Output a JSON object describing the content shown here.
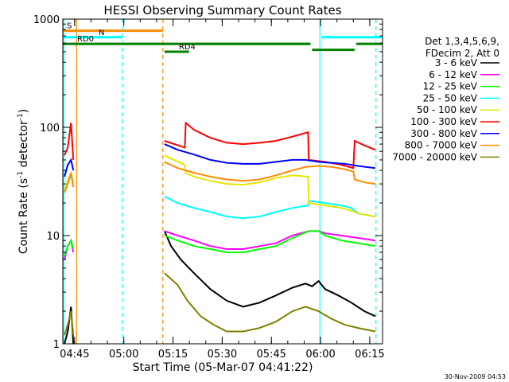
{
  "chart_data": {
    "type": "line",
    "title": "HESSI Observing Summary Count Rates",
    "xlabel": "Start Time (05-Mar-07 04:41:22)",
    "ylabel_main": "Count Rate (s",
    "ylabel_sup1": "-1",
    "ylabel_mid": " detector",
    "ylabel_sup2": "-1",
    "ylabel_end": ")",
    "y_scale": "log",
    "ylim": [
      1,
      1000
    ],
    "xlim_minutes": [
      0,
      97.5
    ],
    "x_ticks": [
      {
        "label": "04:45",
        "min": 3.6
      },
      {
        "label": "05:00",
        "min": 18.6
      },
      {
        "label": "05:15",
        "min": 33.6
      },
      {
        "label": "05:30",
        "min": 48.6
      },
      {
        "label": "05:45",
        "min": 63.6
      },
      {
        "label": "06:00",
        "min": 78.6
      },
      {
        "label": "06:15",
        "min": 93.6
      }
    ],
    "y_ticks": [
      {
        "label": "1",
        "value": 1
      },
      {
        "label": "10",
        "value": 10
      },
      {
        "label": "100",
        "value": 100
      },
      {
        "label": "1000",
        "value": 1000
      }
    ],
    "legend": {
      "position": "right",
      "header": [
        "Det 1,3,4,5,6,9,",
        "FDecim 2, Att 0"
      ],
      "entries": [
        {
          "label": "3 - 6 keV",
          "color": "#000000"
        },
        {
          "label": "6 - 12 keV",
          "color": "#ff00ff"
        },
        {
          "label": "12 - 25 keV",
          "color": "#00ff00"
        },
        {
          "label": "25 - 50 keV",
          "color": "#00ffff"
        },
        {
          "label": "50 - 100 keV",
          "color": "#e6e600"
        },
        {
          "label": "100 - 300 keV",
          "color": "#ff0000"
        },
        {
          "label": "300 - 800 keV",
          "color": "#0000ff"
        },
        {
          "label": "800 - 7000 keV",
          "color": "#ff8c00"
        },
        {
          "label": "7000 - 20000 keV",
          "color": "#808000"
        }
      ]
    },
    "flag_bars": [
      {
        "label": "S",
        "color": "#ff8c00",
        "start_min": 0,
        "end_min": 30.5,
        "value": 780
      },
      {
        "label": "N",
        "color": "#00ffff",
        "start_min": 0,
        "end_min": 18.2,
        "value": 680
      },
      {
        "label": "RD0",
        "color": "#008000",
        "start_min": 0,
        "end_min": 75.5,
        "value": 590
      },
      {
        "label": "RD4",
        "color": "#008000",
        "start_min": 31.0,
        "end_min": 38.5,
        "value": 500
      }
    ],
    "vertical_markers": [
      {
        "min": 0.3,
        "color": "#00ffff",
        "style": "solid"
      },
      {
        "min": 4.2,
        "color": "#ff8c00",
        "style": "solid"
      },
      {
        "min": 18.2,
        "color": "#00ffff",
        "style": "dashed"
      },
      {
        "min": 30.5,
        "color": "#ff8c00",
        "style": "dashed"
      },
      {
        "min": 78.4,
        "color": "#00ffff",
        "style": "solid"
      },
      {
        "min": 95.5,
        "color": "#00ffff",
        "style": "dashed"
      }
    ],
    "series": [
      {
        "name": "3 - 6 keV",
        "color": "#000000",
        "x": [
          0.5,
          1.5,
          2.5,
          3.2,
          31,
          33,
          36,
          40,
          45,
          50,
          55,
          60,
          65,
          70,
          74,
          76,
          78,
          80,
          84,
          88,
          92,
          95.3
        ],
        "y": [
          1,
          1.3,
          2.2,
          1,
          11,
          8,
          6,
          4.5,
          3.2,
          2.5,
          2.2,
          2.4,
          2.8,
          3.3,
          3.6,
          3.4,
          3.8,
          3.2,
          2.8,
          2.4,
          2.0,
          1.8
        ]
      },
      {
        "name": "6 - 12 keV",
        "color": "#ff00ff",
        "x": [
          0.5,
          1.5,
          2.5,
          3.2,
          31,
          35,
          40,
          45,
          50,
          55,
          60,
          65,
          70,
          75,
          78,
          80,
          85,
          90,
          95.3
        ],
        "y": [
          6,
          8,
          9,
          7,
          11,
          10,
          9,
          8,
          7.5,
          7.5,
          8,
          8.5,
          10,
          11,
          11,
          10.5,
          10,
          9.5,
          9
        ]
      },
      {
        "name": "12 - 25 keV",
        "color": "#00ff00",
        "x": [
          0.5,
          1.5,
          2.5,
          3.2,
          31,
          35,
          40,
          45,
          50,
          55,
          60,
          65,
          70,
          75,
          78,
          80,
          85,
          90,
          95.3
        ],
        "y": [
          6.5,
          8,
          9,
          7.5,
          10,
          9,
          8,
          7.5,
          7,
          7,
          7.5,
          8,
          9.5,
          11,
          11,
          10,
          9,
          8.5,
          8
        ]
      },
      {
        "name": "25 - 50 keV",
        "color": "#00ffff",
        "x": [
          0.5,
          1.5,
          2.5,
          3.2,
          31,
          35,
          40,
          45,
          50,
          55,
          60,
          65,
          70,
          74.8,
          75,
          80,
          85,
          88,
          90,
          95.3
        ],
        "y": [
          25,
          30,
          36,
          30,
          23,
          20,
          18,
          16.5,
          15,
          14.5,
          15,
          16.5,
          18,
          19,
          21,
          20,
          19,
          18,
          16,
          15
        ]
      },
      {
        "name": "50 - 100 keV",
        "color": "#e6e600",
        "x": [
          0.5,
          1.5,
          2.5,
          3.2,
          31,
          37.2,
          37.5,
          40,
          45,
          50,
          55,
          60,
          65,
          70,
          74.8,
          75,
          80,
          85,
          88,
          90,
          95.3
        ],
        "y": [
          26,
          32,
          38,
          30,
          55,
          45,
          38,
          35,
          32,
          30,
          29.5,
          31,
          34,
          36,
          35,
          20,
          19,
          18,
          17,
          16,
          15
        ]
      },
      {
        "name": "100 - 300 keV",
        "color": "#ff0000",
        "x": [
          0.5,
          1.5,
          2.5,
          3.2,
          31,
          37.2,
          37.5,
          40,
          45,
          50,
          55,
          60,
          65,
          70,
          74.8,
          75,
          80,
          85,
          88.6,
          89,
          92,
          95.3
        ],
        "y": [
          55,
          65,
          110,
          50,
          75,
          65,
          110,
          95,
          80,
          72,
          70,
          72,
          75,
          82,
          90,
          50,
          48,
          45,
          42,
          75,
          68,
          62
        ]
      },
      {
        "name": "300 - 800 keV",
        "color": "#0000ff",
        "x": [
          0.5,
          1.5,
          2.5,
          3.2,
          31,
          35,
          40,
          45,
          50,
          55,
          60,
          65,
          70,
          74,
          78,
          82,
          86,
          90,
          95.3
        ],
        "y": [
          35,
          45,
          50,
          40,
          70,
          62,
          56,
          50,
          47,
          46,
          46,
          48,
          50,
          50,
          48,
          47,
          46,
          44,
          42
        ]
      },
      {
        "name": "800 - 7000 keV",
        "color": "#ff8c00",
        "x": [
          0.5,
          1.5,
          2.5,
          3.2,
          31,
          35,
          40,
          45,
          50,
          55,
          60,
          65,
          70,
          74,
          78,
          82,
          86,
          88.6,
          89,
          92,
          95.3
        ],
        "y": [
          25,
          30,
          38,
          28,
          48,
          42,
          38,
          35,
          33,
          32,
          33,
          36,
          40,
          43,
          44,
          43,
          41,
          39,
          33,
          31,
          30
        ]
      },
      {
        "name": "7000 - 20000 keV",
        "color": "#808000",
        "x": [
          0.5,
          1.5,
          2.5,
          3.2,
          31,
          35,
          38,
          42,
          46,
          50,
          55,
          60,
          65,
          70,
          74,
          78,
          82,
          86,
          90,
          95.3
        ],
        "y": [
          1.2,
          1.5,
          2,
          1.2,
          4.5,
          3.5,
          2.5,
          1.8,
          1.5,
          1.3,
          1.3,
          1.4,
          1.6,
          2,
          2.2,
          2.0,
          1.7,
          1.5,
          1.4,
          1.3
        ]
      }
    ]
  },
  "footer_timestamp": "30-Nov-2009 04:53"
}
